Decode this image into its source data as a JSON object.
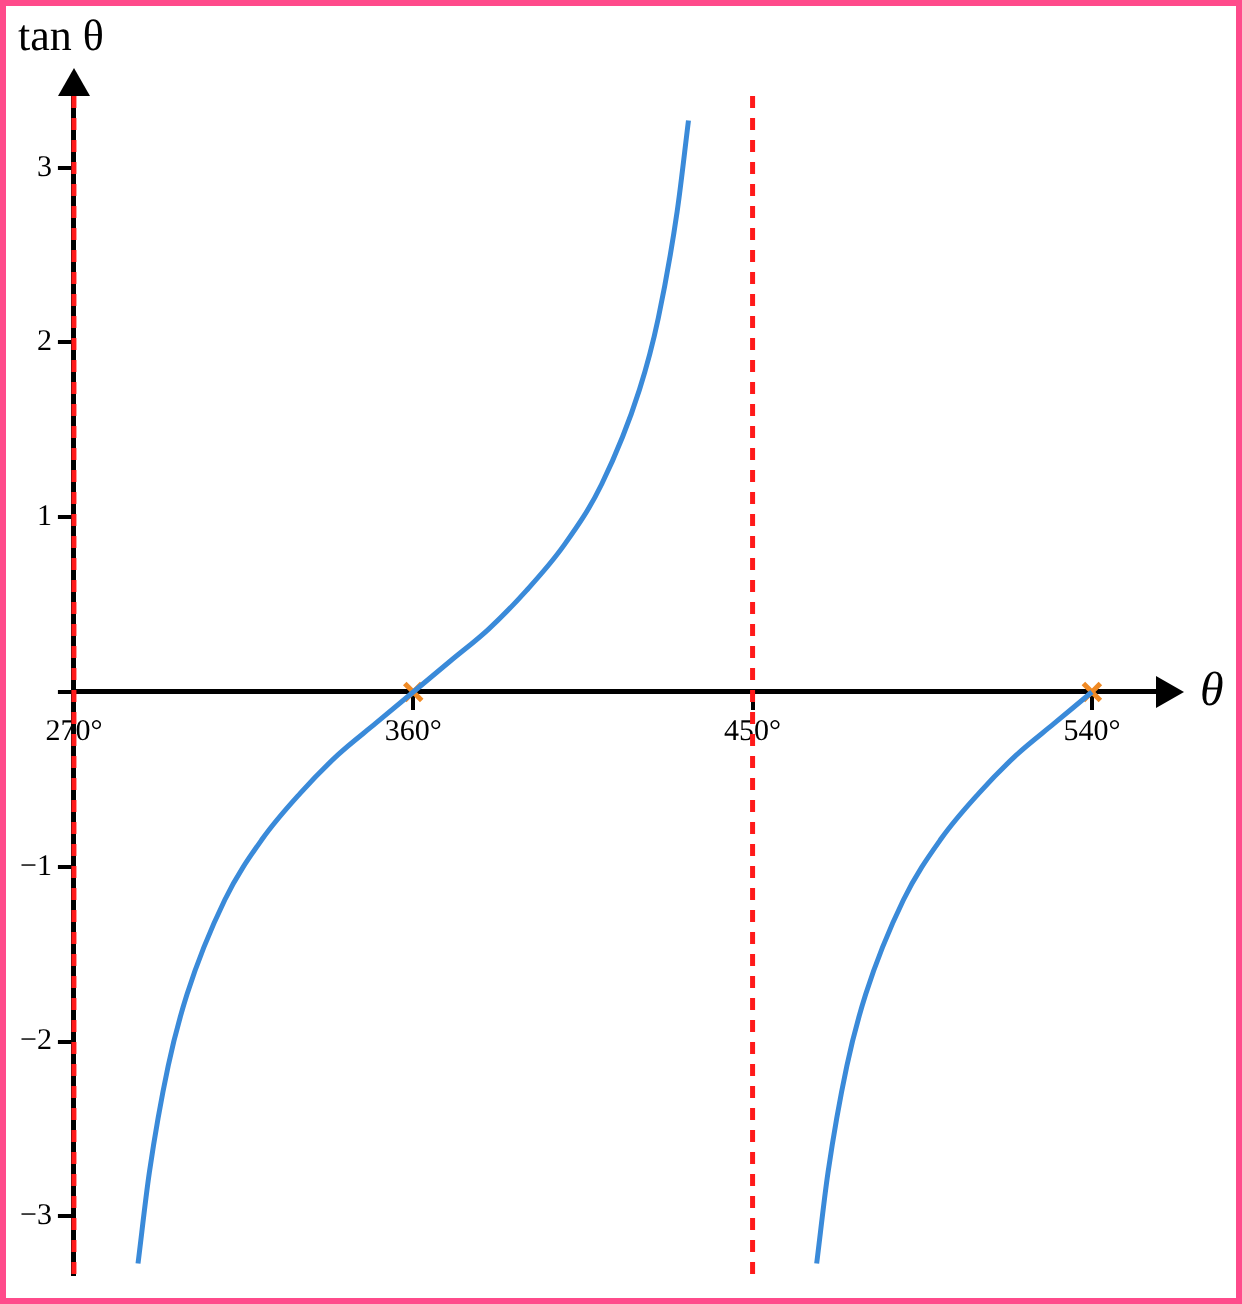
{
  "chart_data": {
    "type": "line",
    "xlabel": "θ",
    "ylabel": "tan θ",
    "xlim": [
      270,
      557
    ],
    "ylim": [
      -3.33,
      3.41
    ],
    "xticks": [
      {
        "value": 270,
        "label": "270°"
      },
      {
        "value": 360,
        "label": "360°"
      },
      {
        "value": 450,
        "label": "450°"
      },
      {
        "value": 540,
        "label": "540°"
      }
    ],
    "yticks": [
      {
        "value": -3,
        "label": "−3"
      },
      {
        "value": -2,
        "label": "−2"
      },
      {
        "value": -1,
        "label": "−1"
      },
      {
        "value": 0,
        "label": null
      },
      1,
      2,
      3
    ],
    "grid": false,
    "legend": false,
    "marker": "none",
    "line_style": "solid",
    "series": [
      {
        "color": "#3a8ad9",
        "x": [
          287,
          290,
          295,
          300,
          310,
          320,
          330,
          340,
          350,
          360,
          370,
          380,
          390,
          400,
          410,
          420,
          425,
          430,
          433
        ],
        "values": [
          -3.27,
          -2.75,
          -2.14,
          -1.73,
          -1.19,
          -0.84,
          -0.58,
          -0.36,
          -0.18,
          0,
          0.18,
          0.36,
          0.58,
          0.84,
          1.19,
          1.73,
          2.14,
          2.75,
          3.27
        ]
      },
      {
        "color": "#3a8ad9",
        "x": [
          467,
          470,
          475,
          480,
          490,
          500,
          510,
          520,
          530,
          540
        ],
        "values": [
          -3.27,
          -2.75,
          -2.14,
          -1.73,
          -1.19,
          -0.84,
          -0.58,
          -0.36,
          -0.18,
          0
        ]
      },
      {
        "type": "scatter",
        "color": "#f08a24",
        "marker": "cross",
        "x": [
          360,
          540
        ],
        "values": [
          0,
          0
        ]
      }
    ],
    "ref_lines": [
      {
        "axis": "x",
        "value": 270,
        "color": "#ff1a1a",
        "line_style": "dashed"
      },
      {
        "axis": "x",
        "value": 450,
        "color": "#ff1a1a",
        "line_style": "dashed"
      }
    ]
  }
}
